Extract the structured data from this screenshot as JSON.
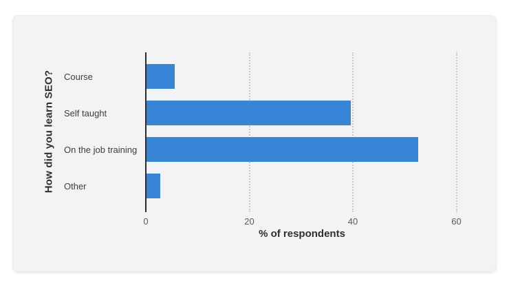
{
  "chart_data": {
    "type": "bar",
    "orientation": "horizontal",
    "categories": [
      "Course",
      "Self taught",
      "On the job training",
      "Other"
    ],
    "values": [
      5.5,
      39.5,
      52.5,
      2.7
    ],
    "xlabel": "% of respondents",
    "ylabel": "How did you learn SEO?",
    "xticks": [
      0,
      20,
      40,
      60
    ],
    "xlim": [
      0,
      65
    ],
    "grid": "dotted-vertical",
    "legend": "none",
    "bar_color": "#3885d8",
    "background_color": "#f2f3f4",
    "axis_color": "#2b2b2b"
  }
}
